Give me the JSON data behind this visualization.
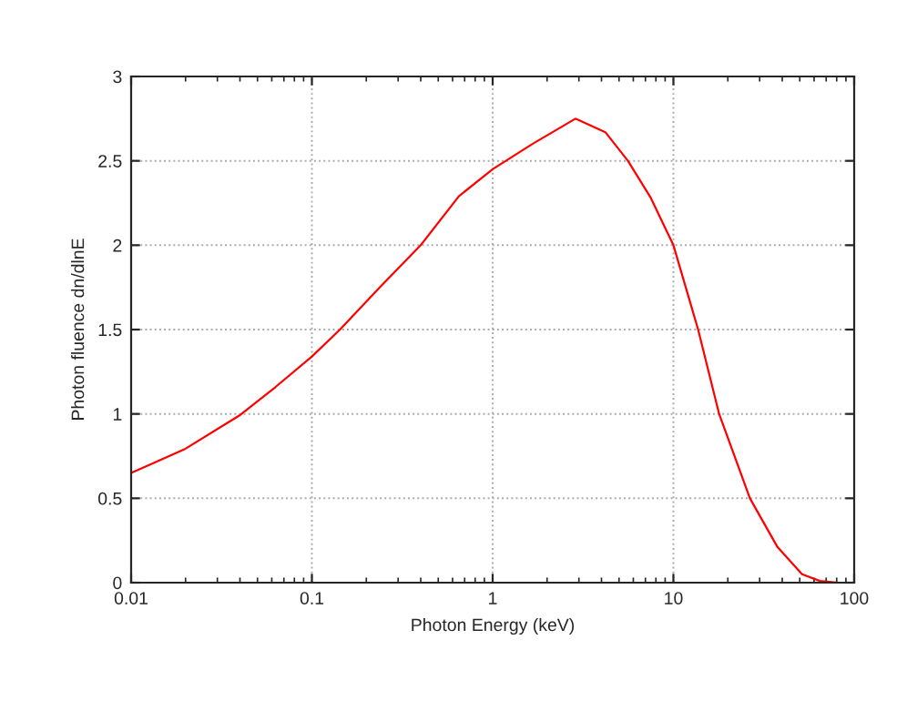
{
  "chart_data": {
    "type": "line",
    "xlabel": "Photon Energy (keV)",
    "ylabel": "Photon fluence dn/dlnE",
    "log": "x",
    "x": [
      0.01,
      0.0197,
      0.0396,
      0.063,
      0.1,
      0.143,
      0.237,
      0.4,
      0.65,
      1,
      1.66,
      2.87,
      4.2,
      5.6,
      7.5,
      10,
      13.7,
      17.9,
      26.5,
      37.7,
      51.5,
      64.6,
      82
    ],
    "series": [
      {
        "color": "#ff0000",
        "values": [
          0.65,
          0.79,
          0.99,
          1.16,
          1.34,
          1.5,
          1.75,
          2.0,
          2.29,
          2.45,
          2.6,
          2.75,
          2.67,
          2.5,
          2.28,
          2.0,
          1.5,
          1.0,
          0.5,
          0.21,
          0.05,
          0.01,
          0.0
        ]
      }
    ],
    "xlim": [
      0.01,
      100
    ],
    "xticks": [
      0.01,
      0.1,
      1,
      10,
      100
    ],
    "ylim": [
      0,
      3
    ],
    "yticks": [
      0,
      0.5,
      1,
      1.5,
      2,
      2.5,
      3
    ],
    "grid": true,
    "line_style": "solid",
    "marker": "none"
  }
}
